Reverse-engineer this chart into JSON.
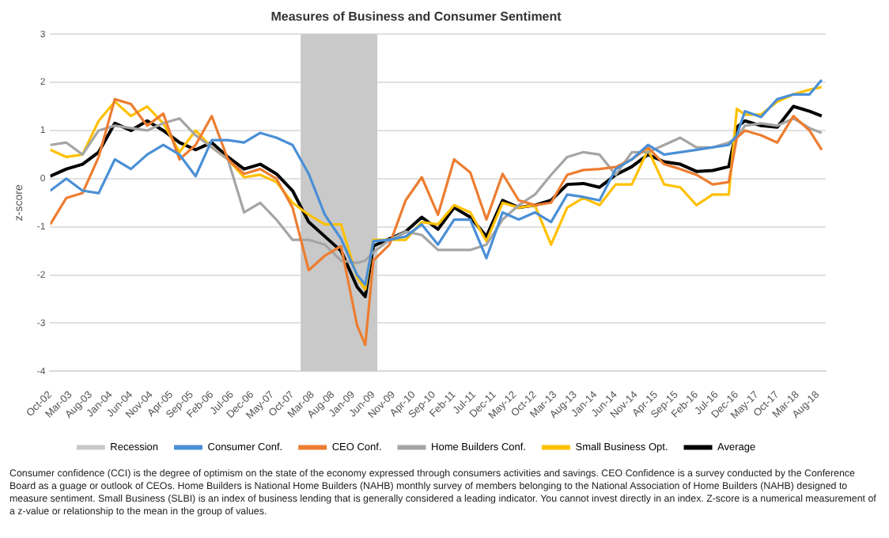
{
  "chart_data": {
    "type": "line",
    "title": "Measures of Business and Consumer Sentiment",
    "ylabel": "z-score",
    "x": [
      "2002-10",
      "2003-02",
      "2003-06",
      "2003-10",
      "2004-02",
      "2004-06",
      "2004-10",
      "2005-02",
      "2005-06",
      "2005-10",
      "2006-02",
      "2006-06",
      "2006-10",
      "2007-02",
      "2007-06",
      "2007-10",
      "2008-02",
      "2008-06",
      "2008-10",
      "2009-02",
      "2009-04",
      "2009-06",
      "2009-10",
      "2010-02",
      "2010-06",
      "2010-10",
      "2011-02",
      "2011-06",
      "2011-10",
      "2012-02",
      "2012-06",
      "2012-10",
      "2013-02",
      "2013-06",
      "2013-10",
      "2014-02",
      "2014-06",
      "2014-10",
      "2015-02",
      "2015-06",
      "2015-10",
      "2016-02",
      "2016-06",
      "2016-10",
      "2016-12",
      "2017-02",
      "2017-06",
      "2017-10",
      "2018-02",
      "2018-06",
      "2018-09"
    ],
    "series": [
      {
        "name": "Consumer Conf.",
        "color": "#4a8fd6",
        "values": [
          -0.25,
          0,
          -0.25,
          -0.3,
          0.4,
          0.2,
          0.5,
          0.7,
          0.5,
          0.05,
          0.8,
          0.8,
          0.75,
          0.95,
          0.85,
          0.7,
          0.1,
          -0.75,
          -1.25,
          -2.0,
          -2.2,
          -1.3,
          -1.27,
          -1.2,
          -0.95,
          -1.37,
          -0.85,
          -0.85,
          -1.65,
          -0.7,
          -0.85,
          -0.7,
          -0.9,
          -0.33,
          -0.38,
          -0.45,
          0.2,
          0.4,
          0.7,
          0.5,
          0.55,
          0.6,
          0.65,
          0.7,
          0.9,
          1.4,
          1.28,
          1.65,
          1.75,
          1.75,
          2.05
        ]
      },
      {
        "name": "CEO Conf.",
        "color": "#ed7d31",
        "values": [
          -0.95,
          -0.4,
          -0.3,
          0.45,
          1.65,
          1.55,
          1.1,
          1.35,
          0.4,
          0.7,
          1.3,
          0.4,
          0.1,
          0.2,
          0,
          -0.6,
          -1.9,
          -1.6,
          -1.4,
          -3.05,
          -3.45,
          -1.7,
          -1.37,
          -0.45,
          0.03,
          -0.75,
          0.4,
          0.13,
          -0.85,
          0.1,
          -0.45,
          -0.55,
          -0.5,
          0.08,
          0.18,
          0.2,
          0.24,
          0.4,
          0.65,
          0.3,
          0.2,
          0.08,
          -0.12,
          -0.07,
          0.85,
          1.0,
          0.9,
          0.75,
          1.3,
          1.0,
          0.6
        ]
      },
      {
        "name": "Home Builders Conf.",
        "color": "#a5a5a5",
        "values": [
          0.7,
          0.75,
          0.5,
          1.0,
          1.1,
          1.05,
          1.0,
          1.15,
          1.25,
          0.9,
          0.65,
          0.4,
          -0.7,
          -0.5,
          -0.85,
          -1.27,
          -1.27,
          -1.37,
          -1.7,
          -1.75,
          -1.7,
          -1.53,
          -1.27,
          -1.1,
          -1.17,
          -1.48,
          -1.48,
          -1.48,
          -1.37,
          -0.85,
          -0.55,
          -0.33,
          0.08,
          0.45,
          0.55,
          0.5,
          0.08,
          0.55,
          0.55,
          0.7,
          0.85,
          0.65,
          0.65,
          0.75,
          0.85,
          1.1,
          1.15,
          1.1,
          1.25,
          1.05,
          0.95
        ]
      },
      {
        "name": "Small Business Opt.",
        "color": "#ffc000",
        "values": [
          0.6,
          0.45,
          0.5,
          1.2,
          1.6,
          1.3,
          1.5,
          1.15,
          0.55,
          1.0,
          0.65,
          0.4,
          0.03,
          0.08,
          -0.07,
          -0.5,
          -0.75,
          -0.95,
          -0.95,
          -2.05,
          -2.3,
          -1.27,
          -1.27,
          -1.27,
          -0.9,
          -0.95,
          -0.55,
          -0.7,
          -1.3,
          -0.5,
          -0.6,
          -0.55,
          -1.37,
          -0.6,
          -0.4,
          -0.55,
          -0.12,
          -0.12,
          0.6,
          -0.12,
          -0.18,
          -0.55,
          -0.33,
          -0.33,
          1.45,
          1.33,
          1.33,
          1.6,
          1.75,
          1.85,
          1.9
        ]
      },
      {
        "name": "Average",
        "color": "#000000",
        "values": [
          0.05,
          0.2,
          0.3,
          0.55,
          1.15,
          1.0,
          1.2,
          1.0,
          0.75,
          0.6,
          0.75,
          0.45,
          0.2,
          0.3,
          0.1,
          -0.25,
          -0.9,
          -1.2,
          -1.5,
          -2.25,
          -2.45,
          -1.4,
          -1.25,
          -1.1,
          -0.8,
          -1.05,
          -0.6,
          -0.8,
          -1.2,
          -0.45,
          -0.6,
          -0.55,
          -0.45,
          -0.12,
          -0.1,
          -0.18,
          0.08,
          0.25,
          0.5,
          0.35,
          0.3,
          0.15,
          0.17,
          0.25,
          1.07,
          1.2,
          1.1,
          1.07,
          1.5,
          1.4,
          1.3
        ]
      }
    ],
    "bands": [
      {
        "axis": "x",
        "from": "2007-12",
        "to": "2009-07",
        "label": "Recession",
        "color": "#c9c9c9"
      }
    ],
    "xlim": [
      "2002-10",
      "2018-10"
    ],
    "xticks": [
      {
        "value": "2002-10",
        "label": "Oct-02"
      },
      {
        "value": "2003-03",
        "label": "Mar-03"
      },
      {
        "value": "2003-08",
        "label": "Aug-03"
      },
      {
        "value": "2004-01",
        "label": "Jan-04"
      },
      {
        "value": "2004-06",
        "label": "Jun-04"
      },
      {
        "value": "2004-11",
        "label": "Nov-04"
      },
      {
        "value": "2005-04",
        "label": "Apr-05"
      },
      {
        "value": "2005-09",
        "label": "Sep-05"
      },
      {
        "value": "2006-02",
        "label": "Feb-06"
      },
      {
        "value": "2006-07",
        "label": "Jul-06"
      },
      {
        "value": "2006-12",
        "label": "Dec-06"
      },
      {
        "value": "2007-05",
        "label": "May-07"
      },
      {
        "value": "2007-10",
        "label": "Oct-07"
      },
      {
        "value": "2008-03",
        "label": "Mar-08"
      },
      {
        "value": "2008-08",
        "label": "Aug-08"
      },
      {
        "value": "2009-01",
        "label": "Jan-09"
      },
      {
        "value": "2009-06",
        "label": "Jun-09"
      },
      {
        "value": "2009-11",
        "label": "Nov-09"
      },
      {
        "value": "2010-04",
        "label": "Apr-10"
      },
      {
        "value": "2010-09",
        "label": "Sep-10"
      },
      {
        "value": "2011-02",
        "label": "Feb-11"
      },
      {
        "value": "2011-07",
        "label": "Jul-11"
      },
      {
        "value": "2011-12",
        "label": "Dec-11"
      },
      {
        "value": "2012-05",
        "label": "May-12"
      },
      {
        "value": "2012-10",
        "label": "Oct-12"
      },
      {
        "value": "2013-03",
        "label": "Mar-13"
      },
      {
        "value": "2013-08",
        "label": "Aug-13"
      },
      {
        "value": "2014-01",
        "label": "Jan-14"
      },
      {
        "value": "2014-06",
        "label": "Jun-14"
      },
      {
        "value": "2014-11",
        "label": "Nov-14"
      },
      {
        "value": "2015-04",
        "label": "Apr-15"
      },
      {
        "value": "2015-09",
        "label": "Sep-15"
      },
      {
        "value": "2016-02",
        "label": "Feb-16"
      },
      {
        "value": "2016-07",
        "label": "Jul-16"
      },
      {
        "value": "2016-12",
        "label": "Dec-16"
      },
      {
        "value": "2017-05",
        "label": "May-17"
      },
      {
        "value": "2017-10",
        "label": "Oct-17"
      },
      {
        "value": "2018-03",
        "label": "Mar-18"
      },
      {
        "value": "2018-08",
        "label": "Aug-18"
      }
    ],
    "ylim": [
      -4,
      3
    ],
    "yticks": [
      -4,
      -3,
      -2,
      -1,
      0,
      1,
      2,
      3
    ],
    "grid": "y",
    "legend": "bottom",
    "marker": "none",
    "line_style": "solid",
    "annotations": [
      "Consumer confidence (CCI) is the degree of optimism on the state of the economy expressed through consumers activities and savings.  CEO Confidence is a survey conducted by the Conference Board as a guage or outlook of CEOs. Home Builders is National Home Builders (NAHB) monthly survey of members belonging to the National Association of Home Builders (NAHB) designed to measure sentiment. Small Business (SLBI) is an index of business lending that is generally considered a leading indicator. You cannot invest directly in an index. Z-score is a numerical measurement of a z-value or relationship to the mean in the group of values."
    ]
  }
}
